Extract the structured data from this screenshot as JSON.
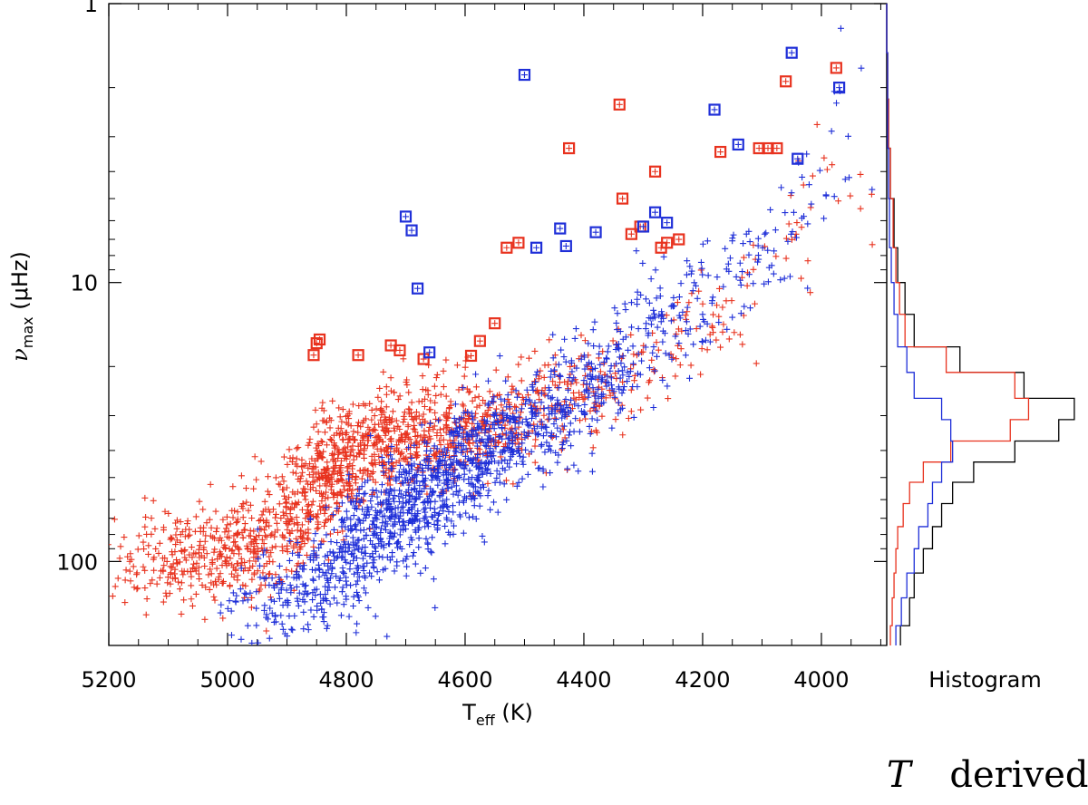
{
  "chart_data": [
    {
      "type": "scatter",
      "xlabel": "T",
      "xlabel_sub": "eff",
      "xlabel_unit": "(K)",
      "ylabel": "ν",
      "ylabel_sub": "max",
      "ylabel_unit": "(μHz)",
      "xlim": [
        5200,
        3890
      ],
      "ylim": [
        1,
        200
      ],
      "y_scale": "log",
      "y_inverted": true,
      "x_ticks": [
        5200,
        5000,
        4800,
        4600,
        4400,
        4200,
        4000
      ],
      "x_tick_labels": [
        "5200",
        "5000",
        "4800",
        "4600",
        "4400",
        "4200",
        "4000"
      ],
      "y_ticks": [
        1,
        10,
        100
      ],
      "y_tick_labels": [
        "1",
        "10",
        "100"
      ],
      "grid": false,
      "series": [
        {
          "color": "#e8321e",
          "marker": "plus",
          "points": [
            [
              5150,
              102
            ],
            [
              5100,
              92
            ],
            [
              5050,
              98
            ],
            [
              5010,
              100
            ],
            [
              4990,
              85
            ],
            [
              4950,
              90
            ],
            [
              4900,
              70
            ],
            [
              4860,
              62
            ],
            [
              4830,
              48
            ],
            [
              4800,
              42
            ],
            [
              4760,
              38
            ],
            [
              4720,
              36
            ],
            [
              4680,
              34
            ],
            [
              4640,
              34
            ],
            [
              4600,
              33
            ],
            [
              4560,
              32
            ],
            [
              4520,
              30
            ],
            [
              4480,
              28
            ],
            [
              4440,
              27
            ],
            [
              4400,
              25
            ],
            [
              4350,
              22
            ],
            [
              4300,
              20
            ],
            [
              4250,
              16
            ],
            [
              4200,
              14
            ],
            [
              4150,
              12
            ],
            [
              4100,
              9
            ],
            [
              4050,
              7
            ],
            [
              4000,
              5
            ],
            [
              3960,
              4
            ]
          ],
          "spread": [
            40,
            60,
            60,
            60,
            70,
            80,
            90,
            110,
            120,
            120,
            110,
            100,
            90,
            80,
            70,
            60,
            50,
            40,
            40,
            35,
            30,
            25,
            20,
            20,
            15,
            10,
            10,
            8,
            6
          ]
        },
        {
          "color": "#1f2fd8",
          "marker": "plus",
          "points": [
            [
              4950,
              150
            ],
            [
              4900,
              140
            ],
            [
              4850,
              120
            ],
            [
              4800,
              100
            ],
            [
              4760,
              80
            ],
            [
              4720,
              70
            ],
            [
              4680,
              60
            ],
            [
              4640,
              55
            ],
            [
              4600,
              45
            ],
            [
              4560,
              40
            ],
            [
              4520,
              35
            ],
            [
              4480,
              30
            ],
            [
              4440,
              27
            ],
            [
              4400,
              24
            ],
            [
              4360,
              20
            ],
            [
              4320,
              18
            ],
            [
              4280,
              15
            ],
            [
              4240,
              13
            ],
            [
              4200,
              11
            ],
            [
              4160,
              10
            ],
            [
              4120,
              8
            ],
            [
              4080,
              7
            ],
            [
              4040,
              6
            ],
            [
              4000,
              4
            ],
            [
              3950,
              2
            ]
          ],
          "spread": [
            40,
            60,
            80,
            100,
            110,
            120,
            130,
            130,
            120,
            100,
            90,
            70,
            60,
            50,
            45,
            40,
            35,
            30,
            25,
            20,
            18,
            15,
            12,
            10,
            6
          ]
        }
      ],
      "highlighted_red": [
        [
          4850,
          16.5
        ],
        [
          4855,
          18.2
        ],
        [
          4845,
          16.0
        ],
        [
          4780,
          18.2
        ],
        [
          4725,
          16.8
        ],
        [
          4710,
          17.5
        ],
        [
          4670,
          18.8
        ],
        [
          4590,
          18.3
        ],
        [
          4575,
          16.2
        ],
        [
          4550,
          14.0
        ],
        [
          4530,
          7.5
        ],
        [
          4510,
          7.2
        ],
        [
          4425,
          3.3
        ],
        [
          4340,
          2.3
        ],
        [
          4335,
          5.0
        ],
        [
          4320,
          6.7
        ],
        [
          4305,
          6.3
        ],
        [
          4280,
          4.0
        ],
        [
          4270,
          7.5
        ],
        [
          4260,
          7.2
        ],
        [
          4240,
          7.0
        ],
        [
          4170,
          3.4
        ],
        [
          4105,
          3.3
        ],
        [
          4090,
          3.3
        ],
        [
          4075,
          3.3
        ],
        [
          4060,
          1.9
        ],
        [
          3975,
          1.7
        ]
      ],
      "highlighted_blue": [
        [
          4700,
          5.8
        ],
        [
          4690,
          6.5
        ],
        [
          4680,
          10.5
        ],
        [
          4660,
          17.8
        ],
        [
          4500,
          1.8
        ],
        [
          4480,
          7.5
        ],
        [
          4440,
          6.4
        ],
        [
          4430,
          7.4
        ],
        [
          4380,
          6.6
        ],
        [
          4300,
          6.3
        ],
        [
          4280,
          5.6
        ],
        [
          4260,
          6.1
        ],
        [
          4180,
          2.4
        ],
        [
          4140,
          3.2
        ],
        [
          4050,
          1.5
        ],
        [
          4040,
          3.6
        ],
        [
          3970,
          2.0
        ]
      ],
      "x_count_labels": []
    },
    {
      "type": "line",
      "title": "Histogram",
      "orientation": "vertical",
      "y_scale": "log",
      "ylim": [
        1,
        200
      ],
      "series": [
        {
          "color": "#000000",
          "bins": [
            [
              1.0,
              0
            ],
            [
              1.5,
              1
            ],
            [
              2.2,
              2
            ],
            [
              3.3,
              4
            ],
            [
              5.0,
              8
            ],
            [
              7.5,
              12
            ],
            [
              10,
              20
            ],
            [
              13,
              30
            ],
            [
              17,
              80
            ],
            [
              21,
              150
            ],
            [
              26,
              205
            ],
            [
              31,
              188
            ],
            [
              37,
              140
            ],
            [
              44,
              95
            ],
            [
              52,
              72
            ],
            [
              62,
              60
            ],
            [
              75,
              50
            ],
            [
              90,
              40
            ],
            [
              110,
              30
            ],
            [
              135,
              25
            ],
            [
              170,
              15
            ]
          ]
        },
        {
          "color": "#e8321e",
          "bins": [
            [
              1.0,
              0
            ],
            [
              1.5,
              1
            ],
            [
              2.2,
              2
            ],
            [
              3.3,
              4
            ],
            [
              5.0,
              7
            ],
            [
              7.5,
              10
            ],
            [
              10,
              14
            ],
            [
              13,
              20
            ],
            [
              17,
              65
            ],
            [
              21,
              140
            ],
            [
              26,
              155
            ],
            [
              31,
              135
            ],
            [
              37,
              70
            ],
            [
              44,
              40
            ],
            [
              52,
              25
            ],
            [
              62,
              18
            ],
            [
              75,
              12
            ],
            [
              90,
              10
            ],
            [
              110,
              8
            ],
            [
              135,
              6
            ],
            [
              170,
              4
            ]
          ]
        },
        {
          "color": "#1f2fd8",
          "bins": [
            [
              1.0,
              0
            ],
            [
              1.5,
              1
            ],
            [
              2.2,
              1
            ],
            [
              3.3,
              2
            ],
            [
              5.0,
              3
            ],
            [
              7.5,
              5
            ],
            [
              10,
              8
            ],
            [
              13,
              12
            ],
            [
              17,
              22
            ],
            [
              21,
              30
            ],
            [
              26,
              60
            ],
            [
              31,
              70
            ],
            [
              37,
              72
            ],
            [
              44,
              60
            ],
            [
              52,
              50
            ],
            [
              62,
              45
            ],
            [
              75,
              35
            ],
            [
              90,
              30
            ],
            [
              110,
              22
            ],
            [
              135,
              16
            ],
            [
              170,
              10
            ]
          ]
        }
      ]
    }
  ],
  "footer": {
    "text": "T",
    "text2": "derived"
  }
}
